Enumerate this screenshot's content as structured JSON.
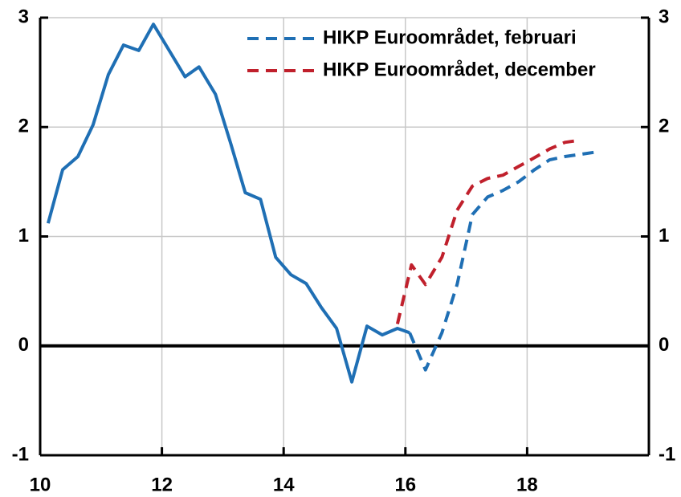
{
  "chart_data": {
    "type": "line",
    "xlim": [
      10,
      20
    ],
    "xticks": [
      10,
      12,
      14,
      16,
      18
    ],
    "ylim": [
      -1,
      3
    ],
    "yticks": [
      -1,
      0,
      1,
      2,
      3
    ],
    "y2lim": [
      -1,
      3
    ],
    "y2ticks": [
      -1,
      0,
      1,
      2,
      3
    ],
    "grid": true,
    "legend": "upper right",
    "series": [
      {
        "color": "#1f6fb4",
        "style": "solid",
        "x": [
          10.13,
          10.37,
          10.62,
          10.87,
          11.12,
          11.37,
          11.62,
          11.86,
          12.12,
          12.38,
          12.61,
          12.88,
          13.13,
          13.37,
          13.62,
          13.87,
          14.12,
          14.37,
          14.62,
          14.87,
          15.12,
          15.37,
          15.62,
          15.87,
          16.07
        ],
        "values": [
          1.12,
          1.61,
          1.73,
          2.02,
          2.48,
          2.75,
          2.7,
          2.94,
          2.7,
          2.46,
          2.55,
          2.3,
          1.85,
          1.4,
          1.34,
          0.81,
          0.65,
          0.57,
          0.35,
          0.16,
          -0.33,
          0.18,
          0.1,
          0.16,
          0.12
        ]
      },
      {
        "name": "HIKP Euroområdet, februari",
        "color": "#1f6fb4",
        "style": "dashed",
        "x": [
          16.07,
          16.33,
          16.6,
          16.85,
          17.1,
          17.35,
          17.6,
          17.86,
          18.12,
          18.37,
          18.62,
          18.87,
          19.11
        ],
        "values": [
          0.12,
          -0.22,
          0.12,
          0.56,
          1.2,
          1.36,
          1.42,
          1.5,
          1.61,
          1.7,
          1.73,
          1.75,
          1.77
        ]
      },
      {
        "name": "HIKP Euroområdet, december",
        "color": "#c0202c",
        "style": "dashed",
        "x": [
          15.87,
          16.1,
          16.33,
          16.6,
          16.85,
          17.1,
          17.35,
          17.6,
          17.86,
          18.12,
          18.37,
          18.62,
          18.87
        ],
        "values": [
          0.2,
          0.74,
          0.56,
          0.81,
          1.24,
          1.46,
          1.53,
          1.56,
          1.64,
          1.72,
          1.8,
          1.86,
          1.88
        ]
      }
    ]
  }
}
